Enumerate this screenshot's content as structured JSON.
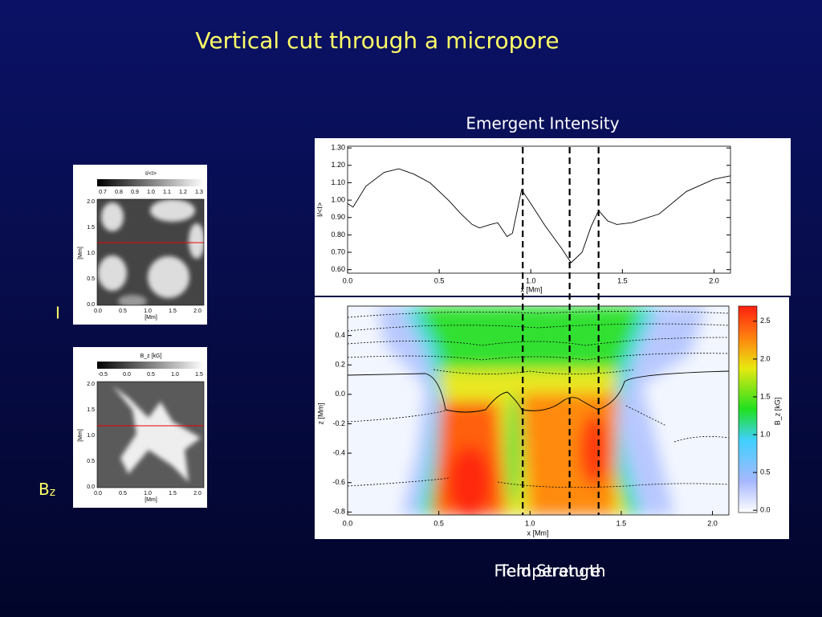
{
  "title": "Vertical cut through a micropore",
  "panel_labels": {
    "intensity": "I",
    "field": {
      "main": "B",
      "sub": "z"
    }
  },
  "intensity_plot": {
    "title": "Emergent Intensity",
    "ylabel": "I/<I>",
    "xlabel": "x [Mm]",
    "xlim": [
      0,
      2.09
    ],
    "ylim": [
      0.58,
      1.31
    ],
    "xticks": [
      {
        "value": 0,
        "label": "0.0"
      },
      0.5,
      {
        "value": 1,
        "label": "1.0"
      },
      1.5,
      {
        "value": 2,
        "label": "2.0"
      }
    ],
    "yticks": [
      {
        "value": 0.6,
        "label": "0.60"
      },
      {
        "value": 0.7,
        "label": "0.70"
      },
      {
        "value": 0.8,
        "label": "0.80"
      },
      {
        "value": 0.9,
        "label": "0.90"
      },
      {
        "value": 1,
        "label": "1.00"
      },
      {
        "value": 1.1,
        "label": "1.10"
      },
      {
        "value": 1.2,
        "label": "1.20"
      },
      {
        "value": 1.3,
        "label": "1.30"
      }
    ],
    "x": [
      0,
      0.03,
      0.1,
      0.2,
      0.28,
      0.36,
      0.45,
      0.55,
      0.62,
      0.68,
      0.72,
      0.78,
      0.82,
      0.87,
      0.9,
      0.95,
      1.0,
      1.08,
      1.17,
      1.22,
      1.28,
      1.33,
      1.37,
      1.42,
      1.47,
      1.55,
      1.7,
      1.85,
      2.0,
      2.09
    ],
    "values": [
      0.98,
      0.96,
      1.08,
      1.16,
      1.18,
      1.15,
      1.1,
      1.0,
      0.92,
      0.86,
      0.84,
      0.86,
      0.87,
      0.79,
      0.81,
      1.06,
      0.98,
      0.85,
      0.72,
      0.64,
      0.7,
      0.85,
      0.94,
      0.88,
      0.86,
      0.87,
      0.92,
      1.05,
      1.12,
      1.14
    ],
    "cut_positions": [
      0.956,
      1.212,
      1.37
    ]
  },
  "field_plot": {
    "title": "Temperature",
    "title_overlay": "Field Strength",
    "ylabel": "z [Mm]",
    "xlabel": "x [Mm]",
    "xlim": [
      0,
      2.09
    ],
    "ylim": [
      -0.82,
      0.6
    ],
    "xticks": [
      {
        "value": 0,
        "label": "0.0"
      },
      0.5,
      {
        "value": 1,
        "label": "1.0"
      },
      1.5,
      {
        "value": 2,
        "label": "2.0"
      }
    ],
    "yticks": [
      -0.8,
      -0.6,
      -0.4,
      -0.2,
      {
        "value": 0,
        "label": "0.0"
      },
      0.2,
      0.4
    ],
    "colorbar": {
      "label": "B_z [kG]",
      "lim": [
        -0.03,
        2.7
      ],
      "ticks": [
        {
          "value": 0,
          "label": "0.0"
        },
        0.5,
        {
          "value": 1,
          "label": "1.0"
        },
        1.5,
        {
          "value": 2,
          "label": "2.0"
        },
        2.5
      ]
    }
  },
  "thumbnails": [
    {
      "colorbar_title": "I/<I>",
      "colorbar_ticks": [
        "0.7",
        "0.8",
        "0.9",
        "1.0",
        "1.1",
        "1.2",
        "1.3"
      ],
      "yticks": [
        "2.0",
        "1.5",
        "1.0",
        "0.5",
        "0.0"
      ],
      "xticks": [
        "0.0",
        "0.5",
        "1.0",
        "1.5",
        "2.0"
      ],
      "xlabel": "[Mm]",
      "ylabel": "[Mm]"
    },
    {
      "colorbar_title": "B_z [kG]",
      "colorbar_ticks": [
        "-0.5",
        "0.0",
        "0.5",
        "1.0",
        "1.5"
      ],
      "yticks": [
        "2.0",
        "1.5",
        "1.0",
        "0.5",
        "0.0"
      ],
      "xticks": [
        "0.0",
        "0.5",
        "1.0",
        "1.5",
        "2.0"
      ],
      "xlabel": "[Mm]",
      "ylabel": "[Mm]"
    }
  ]
}
